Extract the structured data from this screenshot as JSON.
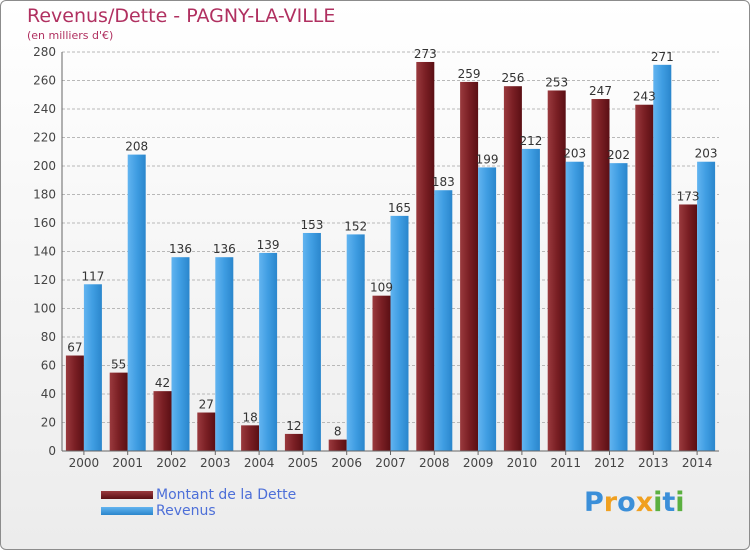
{
  "title": "Revenus/Dette - PAGNY-LA-VILLE",
  "subtitle": "(en milliers d'€)",
  "logo": {
    "text": "Proxiti",
    "letters": [
      "P",
      "r",
      "o",
      "x",
      "i",
      "t",
      "i"
    ],
    "colors": [
      "#3b8fd9",
      "#f0a020",
      "#3b8fd9",
      "#f0a020",
      "#5bb040",
      "#3b8fd9",
      "#5bb040"
    ]
  },
  "colors": {
    "dette": "#7a1f24",
    "revenus": "#3f9de2",
    "grid": "#b8b8b8",
    "title": "#b03060",
    "legend_text": "#4d6fd8"
  },
  "chart_data": {
    "type": "bar",
    "title": "Revenus/Dette - PAGNY-LA-VILLE",
    "subtitle": "(en milliers d'€)",
    "categories": [
      "2000",
      "2001",
      "2002",
      "2003",
      "2004",
      "2005",
      "2006",
      "2007",
      "2008",
      "2009",
      "2010",
      "2011",
      "2012",
      "2013",
      "2014"
    ],
    "series": [
      {
        "name": "Montant de la Dette",
        "values": [
          67,
          55,
          42,
          27,
          18,
          12,
          8,
          109,
          273,
          259,
          256,
          253,
          247,
          243,
          173
        ]
      },
      {
        "name": "Revenus",
        "values": [
          117,
          208,
          136,
          136,
          139,
          153,
          152,
          165,
          183,
          199,
          212,
          203,
          202,
          271,
          203
        ]
      }
    ],
    "ylim": [
      0,
      280
    ],
    "yticks": [
      0,
      20,
      40,
      60,
      80,
      100,
      120,
      140,
      160,
      180,
      200,
      220,
      240,
      260,
      280
    ],
    "grid": true,
    "legend_position": "bottom-left"
  }
}
